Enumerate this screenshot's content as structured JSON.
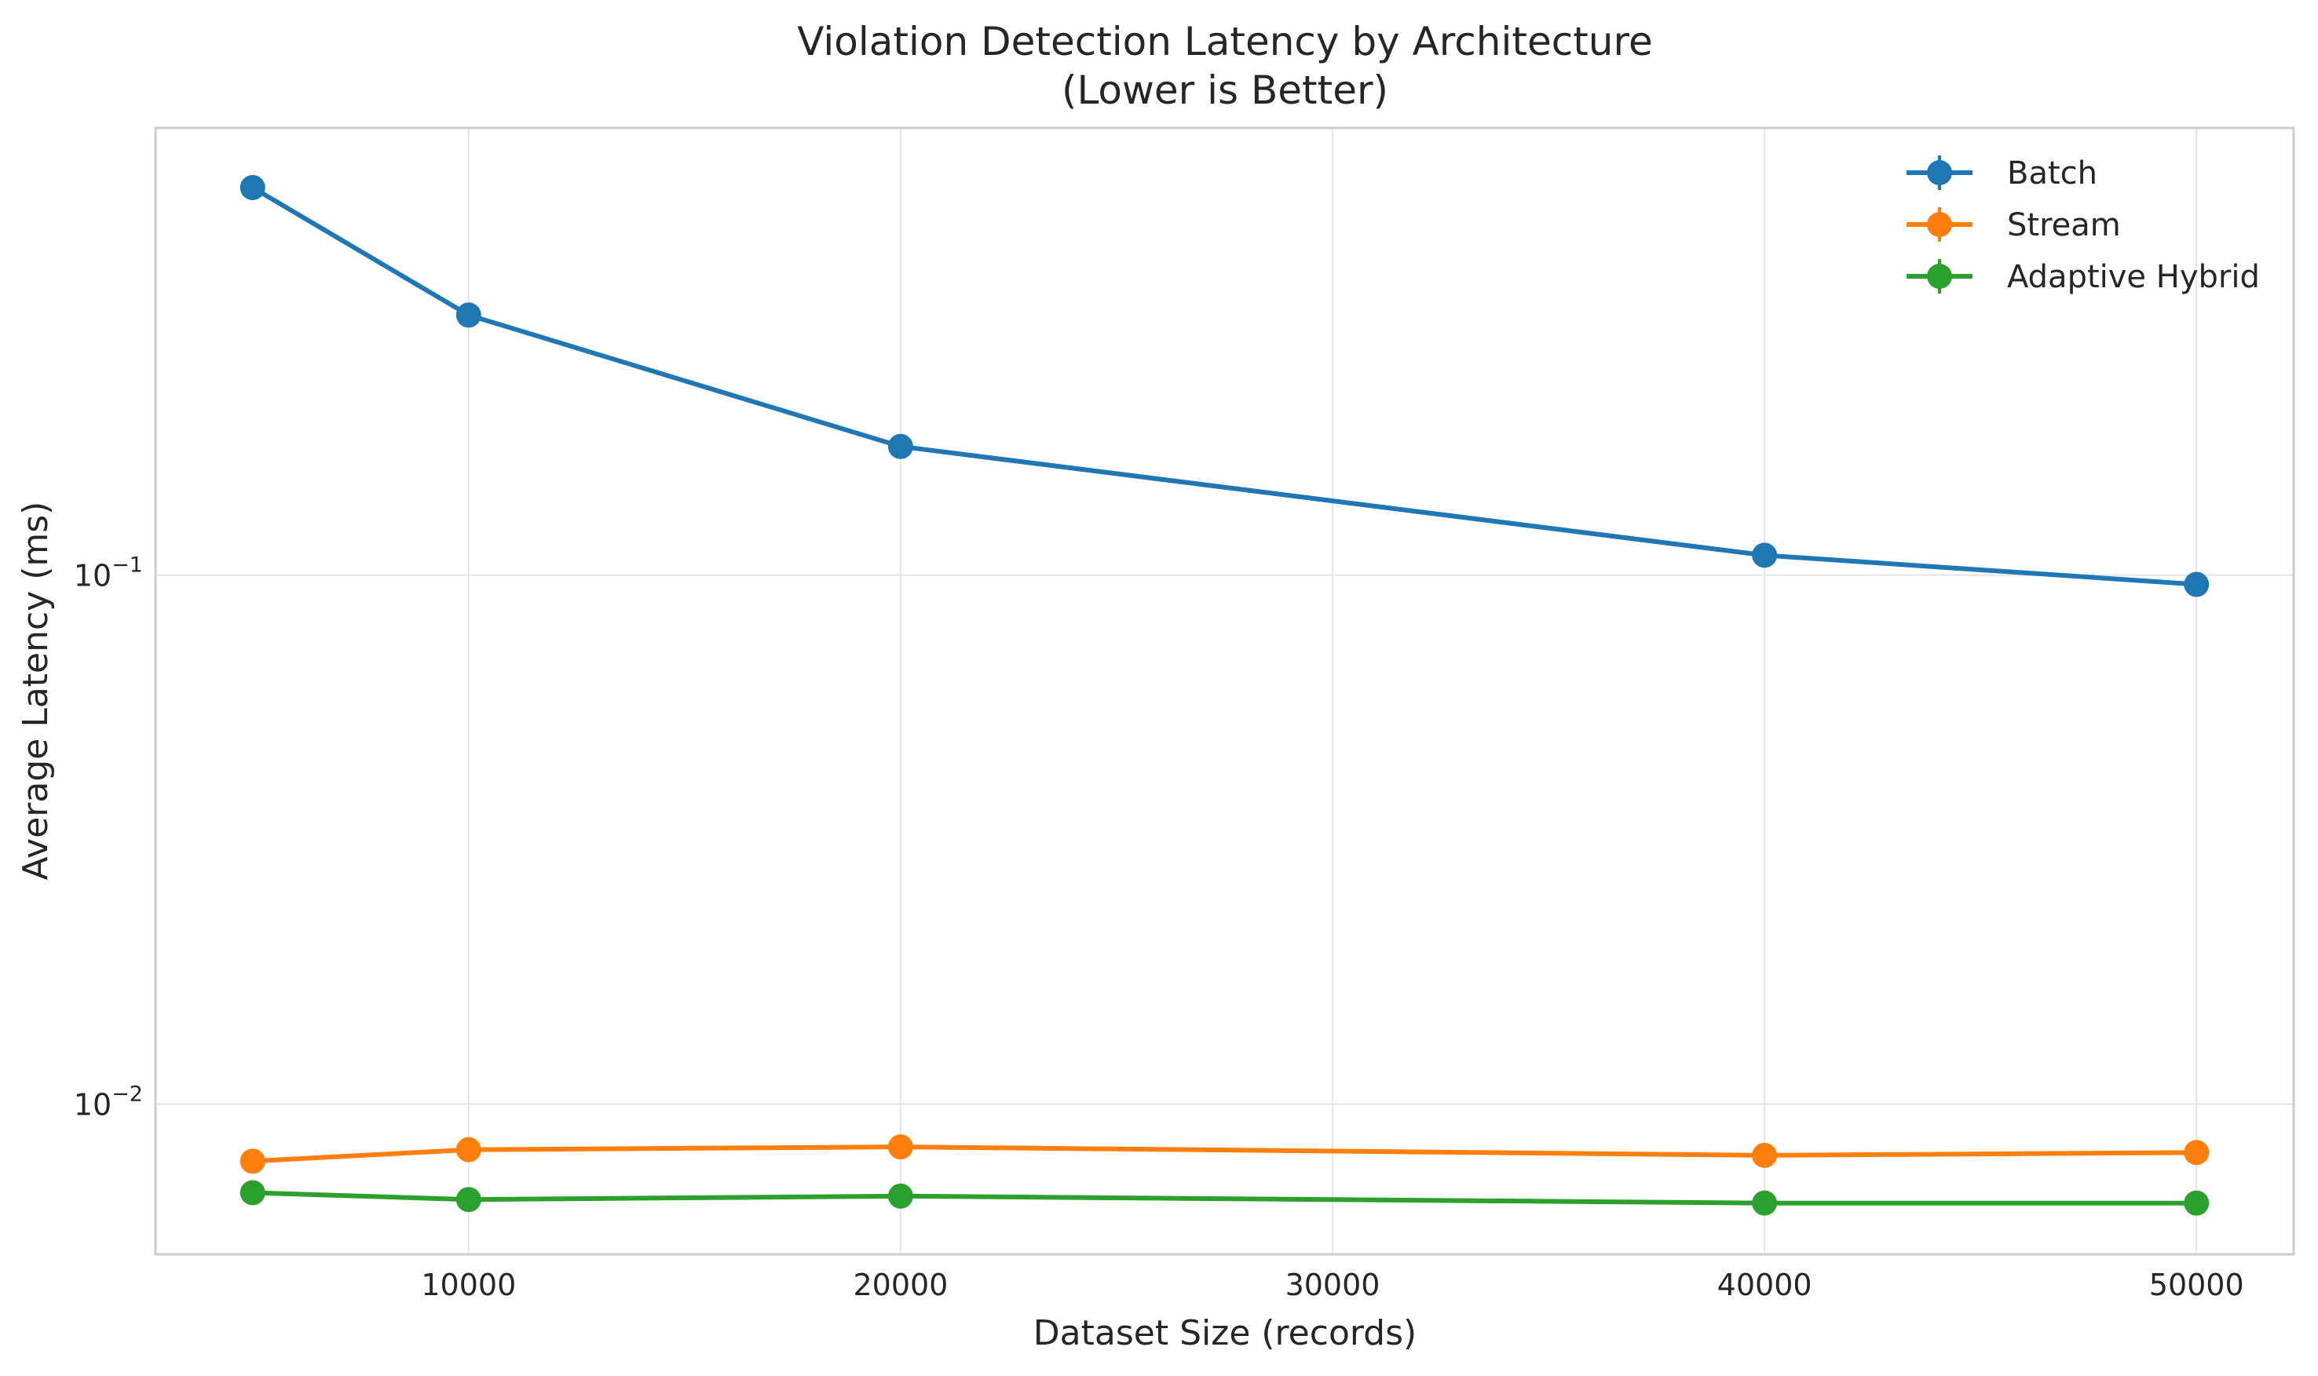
{
  "chart_data": {
    "type": "line",
    "title_line1": "Violation Detection Latency by Architecture",
    "title_line2": "(Lower is Better)",
    "xlabel": "Dataset Size (records)",
    "ylabel": "Average Latency (ms)",
    "x": [
      5000,
      10000,
      20000,
      40000,
      50000
    ],
    "xlim": [
      2750,
      52250
    ],
    "ylim": [
      0.0052,
      0.7
    ],
    "yscale": "log",
    "xticks": [
      10000,
      20000,
      30000,
      40000,
      50000
    ],
    "xtick_labels": [
      "10000",
      "20000",
      "30000",
      "40000",
      "50000"
    ],
    "yticks": [
      {
        "value": 0.1,
        "base": "10",
        "exp": "−1"
      },
      {
        "value": 0.01,
        "base": "10",
        "exp": "−2"
      }
    ],
    "grid": true,
    "legend_position": "top-right",
    "series": [
      {
        "name": "Batch",
        "color": "#1f77b4",
        "values": [
          0.54,
          0.31,
          0.175,
          0.109,
          0.096
        ]
      },
      {
        "name": "Stream",
        "color": "#ff7f0e",
        "values": [
          0.0078,
          0.0082,
          0.0083,
          0.008,
          0.0081
        ]
      },
      {
        "name": "Adaptive Hybrid",
        "color": "#2ca02c",
        "values": [
          0.0068,
          0.0066,
          0.0067,
          0.0065,
          0.0065
        ]
      }
    ]
  }
}
